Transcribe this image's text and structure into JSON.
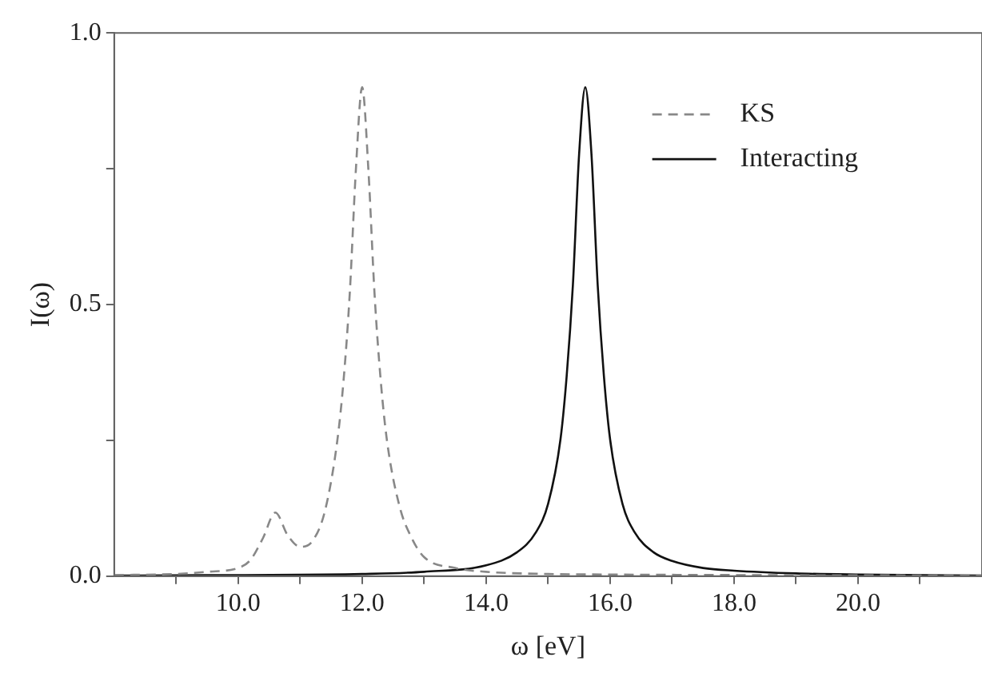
{
  "chart_data": {
    "type": "line",
    "xlabel": "ω [eV]",
    "ylabel": "I(ω)",
    "xlim": [
      8,
      22
    ],
    "xticks": [
      {
        "value": 9,
        "label": null
      },
      {
        "value": 10,
        "label": "10.0"
      },
      {
        "value": 11,
        "label": null
      },
      {
        "value": 12,
        "label": "12.0"
      },
      {
        "value": 13,
        "label": null
      },
      {
        "value": 14,
        "label": "14.0"
      },
      {
        "value": 15,
        "label": null
      },
      {
        "value": 16,
        "label": "16.0"
      },
      {
        "value": 17,
        "label": null
      },
      {
        "value": 18,
        "label": "18.0"
      },
      {
        "value": 19,
        "label": null
      },
      {
        "value": 20,
        "label": "20.0"
      },
      {
        "value": 21,
        "label": null
      }
    ],
    "ylim": [
      0,
      1
    ],
    "yticks": [
      {
        "value": 0,
        "label": "0.0"
      },
      {
        "value": 0.25,
        "label": null
      },
      {
        "value": 0.5,
        "label": "0.5"
      },
      {
        "value": 0.75,
        "label": null
      },
      {
        "value": 1,
        "label": "1.0"
      }
    ],
    "legend": "top right",
    "grid": false,
    "marker": "none",
    "series": [
      {
        "name": "KS",
        "color": "#888888",
        "line_style": "dashed",
        "x": [
          8,
          9,
          9.5,
          10,
          10.2,
          10.4,
          10.6,
          10.8,
          11,
          11.2,
          11.4,
          11.6,
          11.7,
          11.8,
          11.9,
          12,
          12.1,
          12.2,
          12.3,
          12.4,
          12.6,
          12.8,
          13,
          13.5,
          14,
          15,
          16,
          18,
          22
        ],
        "values": [
          0.002,
          0.004,
          0.008,
          0.015,
          0.03,
          0.07,
          0.117,
          0.075,
          0.054,
          0.065,
          0.12,
          0.25,
          0.36,
          0.52,
          0.75,
          0.9,
          0.75,
          0.52,
          0.36,
          0.25,
          0.13,
          0.07,
          0.035,
          0.015,
          0.008,
          0.004,
          0.003,
          0.002,
          0.001
        ]
      },
      {
        "name": "Interacting",
        "color": "#111111",
        "line_style": "solid",
        "x": [
          8,
          10,
          12,
          13,
          14,
          14.5,
          14.8,
          15,
          15.2,
          15.3,
          15.4,
          15.5,
          15.6,
          15.7,
          15.8,
          15.9,
          16,
          16.2,
          16.4,
          16.7,
          17,
          17.5,
          18,
          19,
          20,
          22
        ],
        "values": [
          0.001,
          0.002,
          0.004,
          0.008,
          0.02,
          0.044,
          0.08,
          0.133,
          0.252,
          0.369,
          0.536,
          0.776,
          0.9,
          0.776,
          0.536,
          0.369,
          0.252,
          0.133,
          0.08,
          0.044,
          0.028,
          0.015,
          0.01,
          0.005,
          0.003,
          0.001
        ]
      }
    ]
  }
}
